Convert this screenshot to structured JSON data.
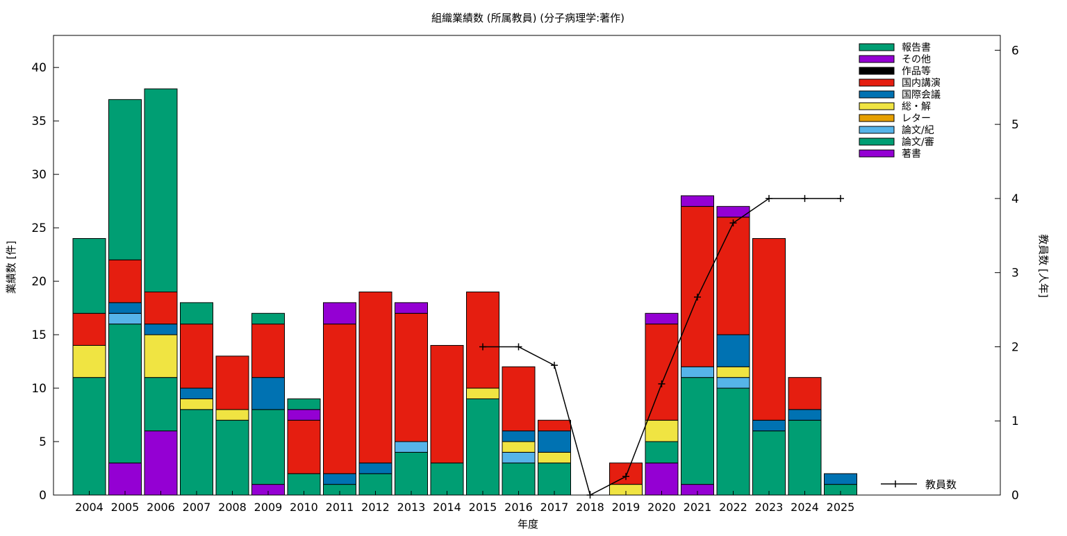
{
  "chart_data": {
    "type": "bar",
    "title": "組織業績数 (所属教員) (分子病理学:著作)",
    "xlabel": "年度",
    "ylabel": "業績数 [件]",
    "y2label": "教員数 [人年]",
    "ylim": [
      0,
      43
    ],
    "y2lim": [
      0,
      6.2
    ],
    "y_ticks": [
      0,
      5,
      10,
      15,
      20,
      25,
      30,
      35,
      40
    ],
    "y2_ticks": [
      0,
      1,
      2,
      3,
      4,
      5,
      6
    ],
    "grid": false,
    "legend_position": "top-right",
    "stacked": true,
    "categories": [
      "2004",
      "2005",
      "2006",
      "2007",
      "2008",
      "2009",
      "2010",
      "2011",
      "2012",
      "2013",
      "2014",
      "2015",
      "2016",
      "2017",
      "2018",
      "2019",
      "2020",
      "2021",
      "2022",
      "2023",
      "2024",
      "2025"
    ],
    "series": [
      {
        "name": "著書",
        "color": "#9400d3",
        "values": [
          0,
          3,
          6,
          0,
          0,
          1,
          0,
          0,
          0,
          0,
          0,
          0,
          0,
          0,
          0,
          0,
          3,
          1,
          0,
          0,
          0,
          0
        ]
      },
      {
        "name": "論文/審",
        "color": "#009e73",
        "values": [
          11,
          13,
          5,
          8,
          7,
          7,
          2,
          1,
          2,
          4,
          3,
          9,
          3,
          3,
          0,
          0,
          2,
          10,
          10,
          6,
          7,
          1
        ]
      },
      {
        "name": "論文/紀",
        "color": "#56b4e9",
        "values": [
          0,
          1,
          0,
          0,
          0,
          0,
          0,
          0,
          0,
          1,
          0,
          0,
          1,
          0,
          0,
          0,
          0,
          1,
          1,
          0,
          0,
          0
        ]
      },
      {
        "name": "レター",
        "color": "#e69f00",
        "values": [
          0,
          0,
          0,
          0,
          0,
          0,
          0,
          0,
          0,
          0,
          0,
          0,
          0,
          0,
          0,
          0,
          0,
          0,
          0,
          0,
          0,
          0
        ]
      },
      {
        "name": "総・解",
        "color": "#f0e442",
        "values": [
          3,
          0,
          4,
          1,
          1,
          0,
          0,
          0,
          0,
          0,
          0,
          1,
          1,
          1,
          0,
          1,
          2,
          0,
          1,
          0,
          0,
          0
        ]
      },
      {
        "name": "国際会議",
        "color": "#0072b2",
        "values": [
          0,
          1,
          1,
          1,
          0,
          3,
          0,
          1,
          1,
          0,
          0,
          0,
          1,
          2,
          0,
          0,
          0,
          0,
          3,
          1,
          1,
          1
        ]
      },
      {
        "name": "国内講演",
        "color": "#e51e10",
        "values": [
          3,
          4,
          3,
          6,
          5,
          5,
          5,
          14,
          16,
          12,
          11,
          9,
          6,
          1,
          0,
          2,
          9,
          15,
          11,
          17,
          3,
          0
        ]
      },
      {
        "name": "作品等",
        "color": "#000000",
        "values": [
          0,
          0,
          0,
          0,
          0,
          0,
          0,
          0,
          0,
          0,
          0,
          0,
          0,
          0,
          0,
          0,
          0,
          0,
          0,
          0,
          0,
          0
        ]
      },
      {
        "name": "その他",
        "color": "#9400d3",
        "values": [
          0,
          0,
          0,
          0,
          0,
          0,
          1,
          2,
          0,
          1,
          0,
          0,
          0,
          0,
          0,
          0,
          1,
          1,
          1,
          0,
          0,
          0
        ]
      },
      {
        "name": "報告書",
        "color": "#009e73",
        "values": [
          7,
          15,
          19,
          2,
          0,
          1,
          1,
          0,
          0,
          0,
          0,
          0,
          0,
          0,
          0,
          0,
          0,
          0,
          0,
          0,
          0,
          0
        ]
      }
    ],
    "line_series": {
      "name": "教員数",
      "color": "#000000",
      "axis": "right",
      "x": [
        "2015",
        "2016",
        "2017",
        "2018",
        "2019",
        "2020",
        "2021",
        "2022",
        "2023",
        "2024",
        "2025"
      ],
      "values": [
        2,
        2,
        1.75,
        0,
        0.25,
        1.5,
        2.67,
        3.67,
        4,
        4,
        4
      ]
    },
    "legend_order": [
      "報告書",
      "その他",
      "作品等",
      "国内講演",
      "国際会議",
      "総・解",
      "レター",
      "論文/紀",
      "論文/審",
      "著書"
    ]
  }
}
